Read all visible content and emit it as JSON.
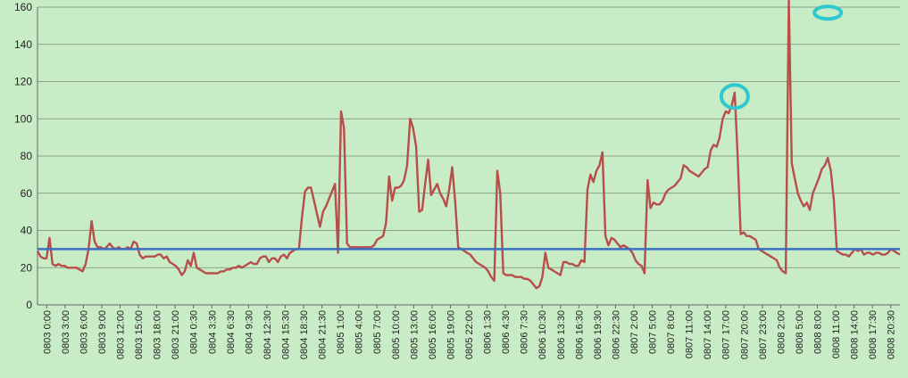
{
  "chart_data": {
    "type": "line",
    "title": "",
    "xlabel": "",
    "ylabel": "",
    "ylim": [
      0,
      160
    ],
    "yticks": [
      0,
      20,
      40,
      60,
      80,
      100,
      120,
      140,
      160
    ],
    "grid": true,
    "legend": "none",
    "x_tick_labels": [
      "0803 0:00",
      "0803 3:00",
      "0803 6:00",
      "0803 9:00",
      "0803 12:00",
      "0803 15:00",
      "0803 18:00",
      "0803 21:00",
      "0804 0:30",
      "0804 3:30",
      "0804 6:30",
      "0804 9:30",
      "0804 12:30",
      "0804 15:30",
      "0804 18:30",
      "0804 21:30",
      "0805 1:00",
      "0805 4:00",
      "0805 7:00",
      "0805 10:00",
      "0805 13:00",
      "0805 16:00",
      "0805 19:00",
      "0805 22:00",
      "0806 1:30",
      "0806 4:30",
      "0806 7:30",
      "0806 10:30",
      "0806 13:30",
      "0806 16:30",
      "0806 19:30",
      "0806 22:30",
      "0807 2:00",
      "0807 5:00",
      "0807 8:00",
      "0807 11:00",
      "0807 14:00",
      "0807 17:00",
      "0807 20:00",
      "0807 23:00",
      "0808 2:00",
      "0808 5:00",
      "0808 8:00",
      "0808 11:00",
      "0808 14:00",
      "0808 17:30",
      "0808 20:30"
    ],
    "series": [
      {
        "values": [
          29,
          26,
          25,
          25,
          36,
          22,
          21,
          22,
          21,
          21,
          20,
          20,
          20,
          20,
          19,
          18,
          22,
          30,
          45,
          34,
          31,
          31,
          30,
          31,
          33,
          31,
          30,
          31,
          30,
          30,
          31,
          30,
          34,
          33,
          27,
          25,
          26,
          26,
          26,
          26,
          27,
          27,
          25,
          26,
          23,
          22,
          21,
          19,
          16,
          18,
          24,
          21,
          28,
          20,
          19,
          18,
          17,
          17,
          17,
          17,
          17,
          18,
          18,
          19,
          19,
          20,
          20,
          21,
          20,
          21,
          22,
          23,
          22,
          22,
          25,
          26,
          26,
          23,
          25,
          25,
          23,
          26,
          27,
          25,
          28,
          29,
          30,
          30,
          47,
          61,
          63,
          63,
          56,
          49,
          42,
          50,
          53,
          57,
          61,
          65,
          28,
          104,
          95,
          33,
          31,
          31,
          31,
          31,
          31,
          31,
          31,
          31,
          32,
          35,
          36,
          37,
          44,
          69,
          56,
          63,
          63,
          64,
          67,
          75,
          100,
          95,
          85,
          50,
          51,
          65,
          78,
          59,
          62,
          65,
          60,
          57,
          53,
          62,
          74,
          55,
          31,
          30,
          29,
          28,
          27,
          25,
          23,
          22,
          21,
          20,
          18,
          15,
          13,
          72,
          60,
          17,
          16,
          16,
          16,
          15,
          15,
          15,
          14,
          14,
          13,
          11,
          9,
          10,
          15,
          28,
          20,
          19,
          18,
          17,
          16,
          23,
          23,
          22,
          22,
          21,
          21,
          24,
          23,
          62,
          70,
          66,
          72,
          75,
          82,
          37,
          32,
          36,
          35,
          33,
          31,
          32,
          31,
          30,
          28,
          24,
          22,
          21,
          17,
          67,
          52,
          55,
          54,
          54,
          56,
          60,
          62,
          63,
          64,
          66,
          68,
          75,
          74,
          72,
          71,
          70,
          69,
          71,
          73,
          74,
          83,
          86,
          85,
          90,
          100,
          104,
          103,
          107,
          114,
          80,
          38,
          39,
          37,
          37,
          36,
          35,
          30,
          29,
          28,
          27,
          26,
          25,
          24,
          20,
          18,
          17,
          165,
          76,
          68,
          60,
          56,
          53,
          55,
          51,
          60,
          64,
          68,
          73,
          75,
          79,
          72,
          56,
          29,
          28,
          27,
          27,
          26,
          28,
          30,
          29,
          30,
          27,
          28,
          28,
          27,
          28,
          28,
          27,
          27,
          28,
          30,
          29,
          28,
          27
        ]
      },
      {
        "values": [
          30,
          30
        ]
      }
    ],
    "annotations": [
      "ellipse marker near value 112",
      "ellipse marker near value 157"
    ]
  },
  "colors": {
    "background": "#c8ecc6",
    "series_line": "#b84e4a",
    "threshold_line": "#3a6ec1",
    "grid": "#7a8a7a",
    "marker": "#2ec9cf"
  }
}
